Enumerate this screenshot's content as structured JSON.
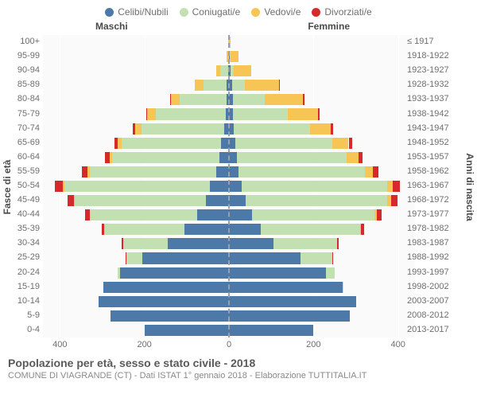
{
  "legend": [
    {
      "label": "Celibi/Nubili",
      "color": "#4d79a8"
    },
    {
      "label": "Coniugati/e",
      "color": "#c3e0b2"
    },
    {
      "label": "Vedovi/e",
      "color": "#f6c556"
    },
    {
      "label": "Divorziati/e",
      "color": "#d62a2a"
    }
  ],
  "side_labels": {
    "left": "Maschi",
    "right": "Femmine"
  },
  "axis_titles": {
    "left": "Fasce di età",
    "right": "Anni di nascita"
  },
  "x_ticks": [
    400,
    200,
    0,
    200,
    400
  ],
  "x_max": 440,
  "title": "Popolazione per età, sesso e stato civile - 2018",
  "subtitle": "COMUNE DI VIAGRANDE (CT) - Dati ISTAT 1° gennaio 2018 - Elaborazione TUTTITALIA.IT",
  "colors": {
    "celibi": "#4d79a8",
    "coniugati": "#c3e0b2",
    "vedovi": "#f6c556",
    "divorziati": "#d62a2a",
    "plot_bg": "#fafafa",
    "grid": "#ffffff",
    "center_dash": "#9aa0a6"
  },
  "rows": [
    {
      "age": "100+",
      "year": "≤ 1917",
      "m": {
        "c": 0,
        "co": 0,
        "v": 1,
        "d": 0
      },
      "f": {
        "c": 0,
        "co": 0,
        "v": 3,
        "d": 0
      }
    },
    {
      "age": "95-99",
      "year": "1918-1922",
      "m": {
        "c": 0,
        "co": 2,
        "v": 3,
        "d": 0
      },
      "f": {
        "c": 2,
        "co": 2,
        "v": 18,
        "d": 0
      }
    },
    {
      "age": "90-94",
      "year": "1923-1927",
      "m": {
        "c": 2,
        "co": 18,
        "v": 10,
        "d": 0
      },
      "f": {
        "c": 3,
        "co": 8,
        "v": 42,
        "d": 0
      }
    },
    {
      "age": "85-89",
      "year": "1928-1932",
      "m": {
        "c": 5,
        "co": 55,
        "v": 20,
        "d": 0
      },
      "f": {
        "c": 8,
        "co": 30,
        "v": 80,
        "d": 2
      }
    },
    {
      "age": "80-84",
      "year": "1933-1937",
      "m": {
        "c": 6,
        "co": 110,
        "v": 22,
        "d": 2
      },
      "f": {
        "c": 10,
        "co": 75,
        "v": 90,
        "d": 3
      }
    },
    {
      "age": "75-79",
      "year": "1938-1942",
      "m": {
        "c": 8,
        "co": 165,
        "v": 20,
        "d": 3
      },
      "f": {
        "c": 10,
        "co": 130,
        "v": 70,
        "d": 4
      }
    },
    {
      "age": "70-74",
      "year": "1943-1947",
      "m": {
        "c": 12,
        "co": 195,
        "v": 15,
        "d": 6
      },
      "f": {
        "c": 12,
        "co": 180,
        "v": 48,
        "d": 6
      }
    },
    {
      "age": "65-69",
      "year": "1948-1952",
      "m": {
        "c": 18,
        "co": 235,
        "v": 10,
        "d": 8
      },
      "f": {
        "c": 15,
        "co": 230,
        "v": 38,
        "d": 8
      }
    },
    {
      "age": "60-64",
      "year": "1953-1957",
      "m": {
        "c": 22,
        "co": 255,
        "v": 6,
        "d": 10
      },
      "f": {
        "c": 18,
        "co": 260,
        "v": 28,
        "d": 10
      }
    },
    {
      "age": "55-59",
      "year": "1958-1962",
      "m": {
        "c": 30,
        "co": 300,
        "v": 4,
        "d": 14
      },
      "f": {
        "c": 22,
        "co": 300,
        "v": 18,
        "d": 14
      }
    },
    {
      "age": "50-54",
      "year": "1963-1967",
      "m": {
        "c": 45,
        "co": 345,
        "v": 3,
        "d": 18
      },
      "f": {
        "c": 30,
        "co": 345,
        "v": 12,
        "d": 18
      }
    },
    {
      "age": "45-49",
      "year": "1968-1972",
      "m": {
        "c": 55,
        "co": 310,
        "v": 2,
        "d": 14
      },
      "f": {
        "c": 40,
        "co": 335,
        "v": 8,
        "d": 16
      }
    },
    {
      "age": "40-44",
      "year": "1973-1977",
      "m": {
        "c": 75,
        "co": 255,
        "v": 0,
        "d": 10
      },
      "f": {
        "c": 55,
        "co": 290,
        "v": 4,
        "d": 12
      }
    },
    {
      "age": "35-39",
      "year": "1978-1982",
      "m": {
        "c": 105,
        "co": 190,
        "v": 0,
        "d": 6
      },
      "f": {
        "c": 75,
        "co": 235,
        "v": 2,
        "d": 8
      }
    },
    {
      "age": "30-34",
      "year": "1983-1987",
      "m": {
        "c": 145,
        "co": 105,
        "v": 0,
        "d": 3
      },
      "f": {
        "c": 105,
        "co": 150,
        "v": 0,
        "d": 4
      }
    },
    {
      "age": "25-29",
      "year": "1988-1992",
      "m": {
        "c": 205,
        "co": 38,
        "v": 0,
        "d": 1
      },
      "f": {
        "c": 170,
        "co": 75,
        "v": 0,
        "d": 2
      }
    },
    {
      "age": "20-24",
      "year": "1993-1997",
      "m": {
        "c": 258,
        "co": 6,
        "v": 0,
        "d": 0
      },
      "f": {
        "c": 230,
        "co": 20,
        "v": 0,
        "d": 0
      }
    },
    {
      "age": "15-19",
      "year": "1998-2002",
      "m": {
        "c": 298,
        "co": 0,
        "v": 0,
        "d": 0
      },
      "f": {
        "c": 268,
        "co": 2,
        "v": 0,
        "d": 0
      }
    },
    {
      "age": "10-14",
      "year": "2003-2007",
      "m": {
        "c": 308,
        "co": 0,
        "v": 0,
        "d": 0
      },
      "f": {
        "c": 300,
        "co": 0,
        "v": 0,
        "d": 0
      }
    },
    {
      "age": "5-9",
      "year": "2008-2012",
      "m": {
        "c": 280,
        "co": 0,
        "v": 0,
        "d": 0
      },
      "f": {
        "c": 285,
        "co": 0,
        "v": 0,
        "d": 0
      }
    },
    {
      "age": "0-4",
      "year": "2013-2017",
      "m": {
        "c": 200,
        "co": 0,
        "v": 0,
        "d": 0
      },
      "f": {
        "c": 200,
        "co": 0,
        "v": 0,
        "d": 0
      }
    }
  ]
}
